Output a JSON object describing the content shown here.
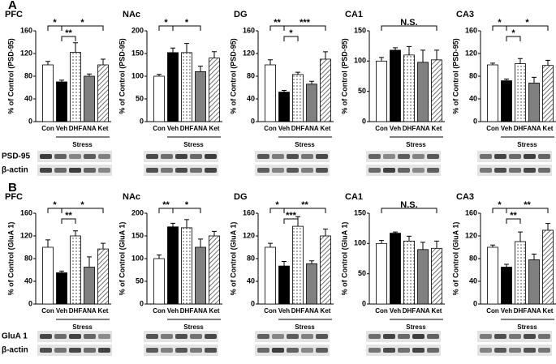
{
  "panel_labels": [
    "A",
    "B"
  ],
  "blot_labels": [
    [
      "PSD-95",
      "β-actin"
    ],
    [
      "GluA 1",
      "β-actin"
    ]
  ],
  "chart_data": [
    {
      "type": "bar",
      "title": "PFC",
      "y_label": "% of Control (PSD-95)",
      "categories": [
        "Con",
        "Veh",
        "DHF",
        "ANA",
        "Ket"
      ],
      "group_label": "Stress",
      "values": [
        100,
        70,
        122,
        80,
        100
      ],
      "errors": [
        6,
        3,
        17,
        4,
        10
      ],
      "fills": [
        "white",
        "black",
        "dots",
        "#808080",
        "hatch"
      ],
      "ylim": [
        0,
        160
      ],
      "yticks": [
        0,
        40,
        80,
        120,
        160
      ],
      "annotations": [
        {
          "from": 0,
          "to": 1,
          "label": "*"
        },
        {
          "from": 1,
          "to": 2,
          "label": "**"
        },
        {
          "from": 1,
          "to": 4,
          "label": "*"
        }
      ]
    },
    {
      "type": "bar",
      "title": "NAc",
      "y_label": "% of Control (PSD-95)",
      "categories": [
        "Con",
        "Veh",
        "DHF",
        "ANA",
        "Ket"
      ],
      "group_label": "Stress",
      "values": [
        100,
        152,
        152,
        110,
        140
      ],
      "errors": [
        4,
        10,
        20,
        12,
        14
      ],
      "fills": [
        "white",
        "black",
        "dots",
        "#808080",
        "hatch"
      ],
      "ylim": [
        0,
        200
      ],
      "yticks": [
        0,
        50,
        100,
        150,
        200
      ],
      "annotations": [
        {
          "from": 0,
          "to": 1,
          "label": "*"
        },
        {
          "from": 1,
          "to": 3,
          "label": "*"
        }
      ]
    },
    {
      "type": "bar",
      "title": "DG",
      "y_label": "% of Control (PSD-95)",
      "categories": [
        "Con",
        "Veh",
        "DHF",
        "ANA",
        "Ket"
      ],
      "group_label": "Stress",
      "values": [
        100,
        52,
        83,
        66,
        110
      ],
      "errors": [
        9,
        3,
        4,
        5,
        13
      ],
      "fills": [
        "white",
        "black",
        "dots",
        "#808080",
        "hatch"
      ],
      "ylim": [
        0,
        160
      ],
      "yticks": [
        0,
        40,
        80,
        120,
        160
      ],
      "annotations": [
        {
          "from": 0,
          "to": 1,
          "label": "**"
        },
        {
          "from": 1,
          "to": 2,
          "label": "*"
        },
        {
          "from": 1,
          "to": 4,
          "label": "***"
        }
      ]
    },
    {
      "type": "bar",
      "title": "CA1",
      "y_label": "% of Control (PSD-95)",
      "categories": [
        "Con",
        "Veh",
        "DHF",
        "ANA",
        "Ket"
      ],
      "group_label": "Stress",
      "values": [
        100,
        118,
        110,
        98,
        102
      ],
      "errors": [
        6,
        4,
        14,
        20,
        16
      ],
      "fills": [
        "white",
        "black",
        "dots",
        "#808080",
        "hatch"
      ],
      "ylim": [
        0,
        150
      ],
      "yticks": [
        0,
        50,
        100,
        150
      ],
      "annotations": [
        {
          "from": 0,
          "to": 4,
          "label": "N.S."
        }
      ]
    },
    {
      "type": "bar",
      "title": "CA3",
      "y_label": "% of Control (PSD-95)",
      "categories": [
        "Con",
        "Veh",
        "DHF",
        "ANA",
        "Ket"
      ],
      "group_label": "Stress",
      "values": [
        100,
        72,
        102,
        68,
        99
      ],
      "errors": [
        3,
        3,
        9,
        10,
        9
      ],
      "fills": [
        "white",
        "black",
        "dots",
        "#808080",
        "hatch"
      ],
      "ylim": [
        0,
        160
      ],
      "yticks": [
        0,
        40,
        80,
        120,
        160
      ],
      "annotations": [
        {
          "from": 0,
          "to": 1,
          "label": "*"
        },
        {
          "from": 1,
          "to": 2,
          "label": "*"
        },
        {
          "from": 1,
          "to": 4,
          "label": "*"
        }
      ]
    },
    {
      "type": "bar",
      "title": "PFC",
      "y_label": "% of Control (GluA 1)",
      "categories": [
        "Con",
        "Veh",
        "DHF",
        "ANA",
        "Ket"
      ],
      "group_label": "Stress",
      "values": [
        100,
        55,
        120,
        65,
        97
      ],
      "errors": [
        13,
        3,
        9,
        18,
        10
      ],
      "fills": [
        "white",
        "black",
        "dots",
        "#808080",
        "hatch"
      ],
      "ylim": [
        0,
        160
      ],
      "yticks": [
        0,
        40,
        80,
        120,
        160
      ],
      "annotations": [
        {
          "from": 0,
          "to": 1,
          "label": "*"
        },
        {
          "from": 1,
          "to": 2,
          "label": "**"
        },
        {
          "from": 1,
          "to": 4,
          "label": "*"
        }
      ]
    },
    {
      "type": "bar",
      "title": "NAc",
      "y_label": "% of Control (GluA 1)",
      "categories": [
        "Con",
        "Veh",
        "DHF",
        "ANA",
        "Ket"
      ],
      "group_label": "Stress",
      "values": [
        100,
        170,
        168,
        125,
        150
      ],
      "errors": [
        8,
        8,
        18,
        18,
        10
      ],
      "fills": [
        "white",
        "black",
        "dots",
        "#808080",
        "hatch"
      ],
      "ylim": [
        0,
        200
      ],
      "yticks": [
        0,
        50,
        100,
        150,
        200
      ],
      "annotations": [
        {
          "from": 0,
          "to": 1,
          "label": "**"
        },
        {
          "from": 1,
          "to": 3,
          "label": "*"
        }
      ]
    },
    {
      "type": "bar",
      "title": "DG",
      "y_label": "% of Control (GluA 1)",
      "categories": [
        "Con",
        "Veh",
        "DHF",
        "ANA",
        "Ket"
      ],
      "group_label": "Stress",
      "values": [
        100,
        67,
        137,
        71,
        120
      ],
      "errors": [
        7,
        8,
        17,
        5,
        12
      ],
      "fills": [
        "white",
        "black",
        "dots",
        "#808080",
        "hatch"
      ],
      "ylim": [
        0,
        160
      ],
      "yticks": [
        0,
        40,
        80,
        120,
        160
      ],
      "annotations": [
        {
          "from": 0,
          "to": 1,
          "label": "*"
        },
        {
          "from": 1,
          "to": 2,
          "label": "***"
        },
        {
          "from": 1,
          "to": 4,
          "label": "**"
        }
      ]
    },
    {
      "type": "bar",
      "title": "CA1",
      "y_label": "% of Control (GluA 1)",
      "categories": [
        "Con",
        "Veh",
        "DHF",
        "ANA",
        "Ket"
      ],
      "group_label": "Stress",
      "values": [
        100,
        117,
        104,
        90,
        92
      ],
      "errors": [
        5,
        2,
        8,
        12,
        12
      ],
      "fills": [
        "white",
        "black",
        "dots",
        "#808080",
        "hatch"
      ],
      "ylim": [
        0,
        150
      ],
      "yticks": [
        0,
        50,
        100,
        150
      ],
      "annotations": [
        {
          "from": 0,
          "to": 4,
          "label": "N.S."
        }
      ]
    },
    {
      "type": "bar",
      "title": "CA3",
      "y_label": "% of Control (GluA 1)",
      "categories": [
        "Con",
        "Veh",
        "DHF",
        "ANA",
        "Ket"
      ],
      "group_label": "Stress",
      "values": [
        100,
        65,
        110,
        78,
        130
      ],
      "errors": [
        4,
        5,
        17,
        10,
        12
      ],
      "fills": [
        "white",
        "black",
        "dots",
        "#808080",
        "hatch"
      ],
      "ylim": [
        0,
        160
      ],
      "yticks": [
        0,
        40,
        80,
        120,
        160
      ],
      "annotations": [
        {
          "from": 0,
          "to": 1,
          "label": "*"
        },
        {
          "from": 1,
          "to": 2,
          "label": "**"
        },
        {
          "from": 1,
          "to": 4,
          "label": "**"
        }
      ]
    }
  ]
}
